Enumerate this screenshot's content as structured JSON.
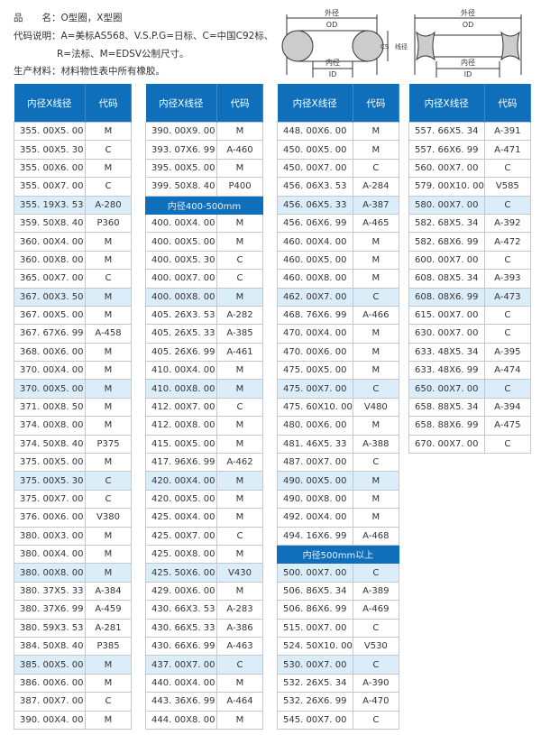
{
  "info": {
    "product": "品　　名：O型圈，X型圈",
    "code_line1": "代码说明：A=美标AS568、V.S.P.G=日标、C=中国C92标、",
    "code_line2": "R=法标、M=EDSV公制尺寸。",
    "material": "生产材料：材料物性表中所有橡胶。"
  },
  "diagram": {
    "od_cn": "外径",
    "od": "OD",
    "id_cn": "内径",
    "id": "ID",
    "cs_cn": "线径",
    "cs": "CS"
  },
  "colors": {
    "header": "#0f6fba",
    "highlight": "#dcedfa"
  },
  "header": {
    "size": "内径X线径",
    "code": "代码"
  },
  "tables": [
    {
      "rows": [
        [
          "355. 00X5. 00",
          "M"
        ],
        [
          "355. 00X5. 30",
          "C"
        ],
        [
          "355. 00X6. 00",
          "M"
        ],
        [
          "355. 00X7. 00",
          "C"
        ],
        [
          "355. 19X3. 53",
          "A-280",
          1
        ],
        [
          "359. 50X8. 40",
          "P360"
        ],
        [
          "360. 00X4. 00",
          "M"
        ],
        [
          "360. 00X8. 00",
          "M"
        ],
        [
          "365. 00X7. 00",
          "C"
        ],
        [
          "367. 00X3. 50",
          "M",
          1
        ],
        [
          "367. 00X5. 00",
          "M"
        ],
        [
          "367. 67X6. 99",
          "A-458"
        ],
        [
          "368. 00X6. 00",
          "M"
        ],
        [
          "370. 00X4. 00",
          "M"
        ],
        [
          "370. 00X5. 00",
          "M",
          1
        ],
        [
          "371. 00X8. 50",
          "M"
        ],
        [
          "374. 00X8. 00",
          "M"
        ],
        [
          "374. 50X8. 40",
          "P375"
        ],
        [
          "375. 00X5. 00",
          "M"
        ],
        [
          "375. 00X5. 30",
          "C",
          1
        ],
        [
          "375. 00X7. 00",
          "C"
        ],
        [
          "376. 00X6. 00",
          "V380"
        ],
        [
          "380. 00X3. 00",
          "M"
        ],
        [
          "380. 00X4. 00",
          "M"
        ],
        [
          "380. 00X8. 00",
          "M",
          1
        ],
        [
          "380. 37X5. 33",
          "A-384"
        ],
        [
          "380. 37X6. 99",
          "A-459"
        ],
        [
          "380. 59X3. 53",
          "A-281"
        ],
        [
          "384. 50X8. 40",
          "P385"
        ],
        [
          "385. 00X5. 00",
          "M",
          1
        ],
        [
          "386. 00X6. 00",
          "M"
        ],
        [
          "387. 00X7. 00",
          "C"
        ],
        [
          "390. 00X4. 00",
          "M"
        ]
      ]
    },
    {
      "rows": [
        [
          "390. 00X9. 00",
          "M"
        ],
        [
          "393. 07X6. 99",
          "A-460"
        ],
        [
          "395. 00X5. 00",
          "M"
        ],
        [
          "399. 50X8. 40",
          "P400"
        ],
        [
          "内径400-500mm"
        ],
        [
          "400. 00X4. 00",
          "M"
        ],
        [
          "400. 00X5. 00",
          "M"
        ],
        [
          "400. 00X5. 30",
          "C"
        ],
        [
          "400. 00X7. 00",
          "C"
        ],
        [
          "400. 00X8. 00",
          "M",
          1
        ],
        [
          "405. 26X3. 53",
          "A-282"
        ],
        [
          "405. 26X5. 33",
          "A-385"
        ],
        [
          "405. 26X6. 99",
          "A-461"
        ],
        [
          "410. 00X4. 00",
          "M"
        ],
        [
          "410. 00X8. 00",
          "M",
          1
        ],
        [
          "412. 00X7. 00",
          "C"
        ],
        [
          "412. 00X8. 00",
          "M"
        ],
        [
          "415. 00X5. 00",
          "M"
        ],
        [
          "417. 96X6. 99",
          "A-462"
        ],
        [
          "420. 00X4. 00",
          "M",
          1
        ],
        [
          "420. 00X5. 00",
          "M"
        ],
        [
          "425. 00X4. 00",
          "M"
        ],
        [
          "425. 00X7. 00",
          "C"
        ],
        [
          "425. 00X8. 00",
          "M"
        ],
        [
          "425. 50X6. 00",
          "V430",
          1
        ],
        [
          "429. 00X6. 00",
          "M"
        ],
        [
          "430. 66X3. 53",
          "A-283"
        ],
        [
          "430. 66X5. 33",
          "A-386"
        ],
        [
          "430. 66X6. 99",
          "A-463"
        ],
        [
          "437. 00X7. 00",
          "C",
          1
        ],
        [
          "440. 00X4. 00",
          "M"
        ],
        [
          "443. 36X6. 99",
          "A-464"
        ],
        [
          "444. 00X8. 00",
          "M"
        ]
      ]
    },
    {
      "rows": [
        [
          "448. 00X6. 00",
          "M"
        ],
        [
          "450. 00X5. 00",
          "M"
        ],
        [
          "450. 00X7. 00",
          "C"
        ],
        [
          "456. 06X3. 53",
          "A-284"
        ],
        [
          "456. 06X5. 33",
          "A-387",
          1
        ],
        [
          "456. 06X6. 99",
          "A-465"
        ],
        [
          "460. 00X4. 00",
          "M"
        ],
        [
          "460. 00X5. 00",
          "M"
        ],
        [
          "460. 00X8. 00",
          "M"
        ],
        [
          "462. 00X7. 00",
          "C",
          1
        ],
        [
          "468. 76X6. 99",
          "A-466"
        ],
        [
          "470. 00X4. 00",
          "M"
        ],
        [
          "470. 00X6. 00",
          "M"
        ],
        [
          "475. 00X5. 00",
          "M"
        ],
        [
          "475. 00X7. 00",
          "C",
          1
        ],
        [
          "475. 60X10. 00",
          "V480"
        ],
        [
          "480. 00X6. 00",
          "M"
        ],
        [
          "481. 46X5. 33",
          "A-388"
        ],
        [
          "487. 00X7. 00",
          "C"
        ],
        [
          "490. 00X5. 00",
          "M",
          1
        ],
        [
          "490. 00X8. 00",
          "M"
        ],
        [
          "492. 00X4. 00",
          "M"
        ],
        [
          "494. 16X6. 99",
          "A-468"
        ],
        [
          "内径500mm以上"
        ],
        [
          "500. 00X7. 00",
          "C",
          1
        ],
        [
          "506. 86X5. 34",
          "A-389"
        ],
        [
          "506. 86X6. 99",
          "A-469"
        ],
        [
          "515. 00X7. 00",
          "C"
        ],
        [
          "524. 50X10. 00",
          "V530"
        ],
        [
          "530. 00X7. 00",
          "C",
          1
        ],
        [
          "532. 26X5. 34",
          "A-390"
        ],
        [
          "532. 26X6. 99",
          "A-470"
        ],
        [
          "545. 00X7. 00",
          "C"
        ]
      ]
    },
    {
      "rows": [
        [
          "557. 66X5. 34",
          "A-391"
        ],
        [
          "557. 66X6. 99",
          "A-471"
        ],
        [
          "560. 00X7. 00",
          "C"
        ],
        [
          "579. 00X10. 00",
          "V585"
        ],
        [
          "580. 00X7. 00",
          "C",
          1
        ],
        [
          "582. 68X5. 34",
          "A-392"
        ],
        [
          "582. 68X6. 99",
          "A-472"
        ],
        [
          "600. 00X7. 00",
          "C"
        ],
        [
          "608. 08X5. 34",
          "A-393"
        ],
        [
          "608. 08X6. 99",
          "A-473",
          1
        ],
        [
          "615. 00X7. 00",
          "C"
        ],
        [
          "630. 00X7. 00",
          "C"
        ],
        [
          "633. 48X5. 34",
          "A-395"
        ],
        [
          "633. 48X6. 99",
          "A-474"
        ],
        [
          "650. 00X7. 00",
          "C",
          1
        ],
        [
          "658. 88X5. 34",
          "A-394"
        ],
        [
          "658. 88X6. 99",
          "A-475"
        ],
        [
          "670. 00X7. 00",
          "C"
        ]
      ]
    }
  ]
}
